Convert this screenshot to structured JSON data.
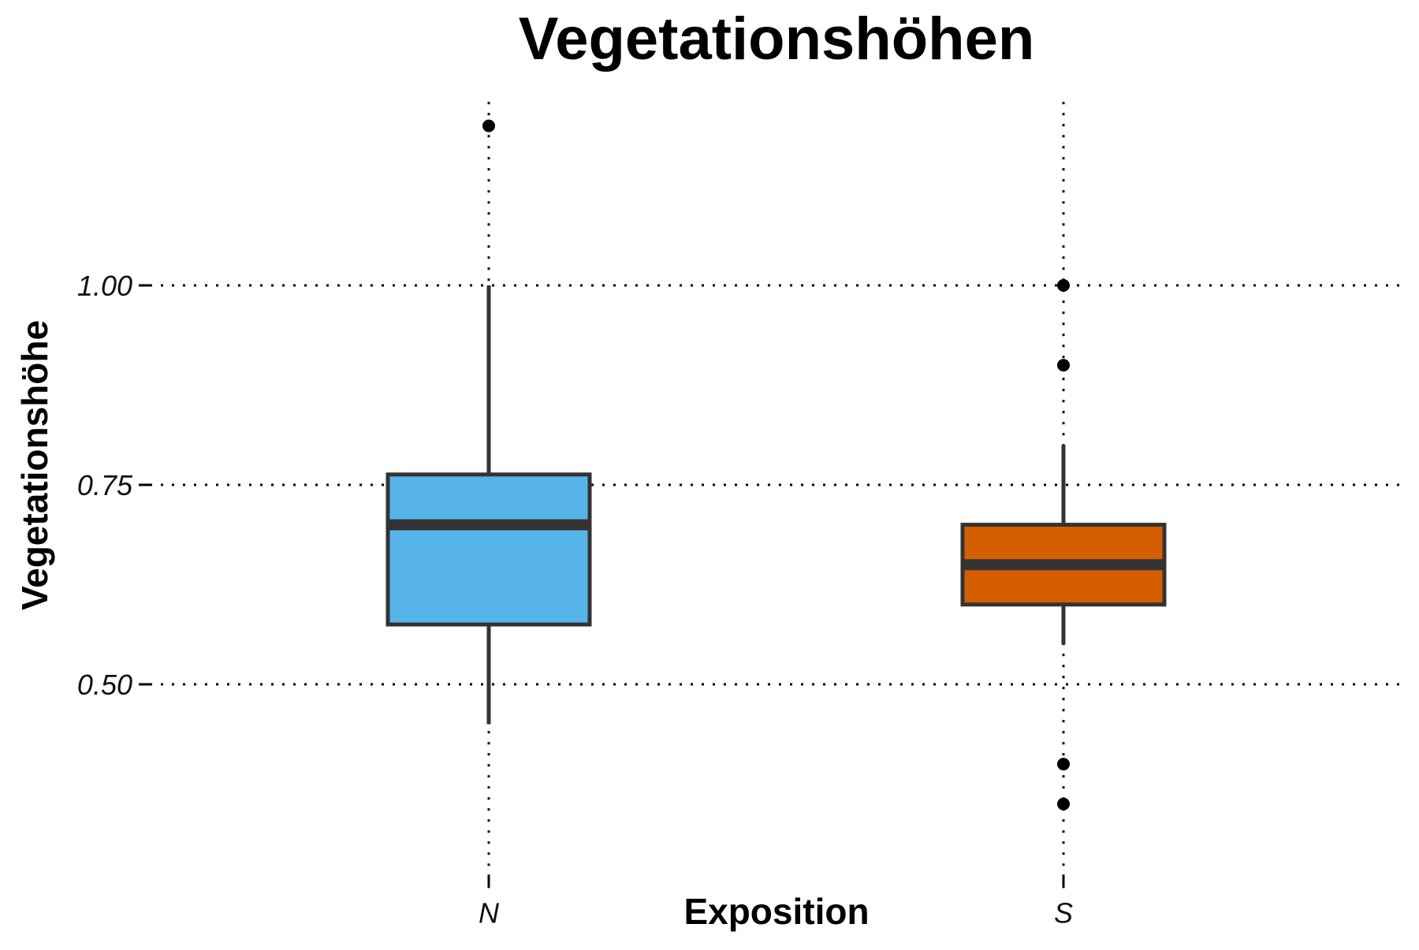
{
  "chart_data": {
    "type": "boxplot",
    "title": "Vegetationshöhen",
    "xlabel": "Exposition",
    "ylabel": "Vegetationshöhe",
    "categories": [
      "N",
      "S"
    ],
    "yticks": [
      "0.50",
      "0.75",
      "1.00"
    ],
    "ytick_values": [
      0.5,
      0.75,
      1.0
    ],
    "ylim": [
      0.3,
      1.23
    ],
    "grid": "dotted, major",
    "legend": "none",
    "series": [
      {
        "category": "N",
        "color": "#56B4E9",
        "min": 0.45,
        "q1": 0.575,
        "median": 0.7,
        "q3": 0.763,
        "max": 1.0,
        "outliers": [
          1.2
        ]
      },
      {
        "category": "S",
        "color": "#D55E00",
        "min": 0.55,
        "q1": 0.6,
        "median": 0.65,
        "q3": 0.7,
        "max": 0.8,
        "outliers": [
          1.0,
          0.9,
          0.4,
          0.35
        ]
      }
    ]
  }
}
